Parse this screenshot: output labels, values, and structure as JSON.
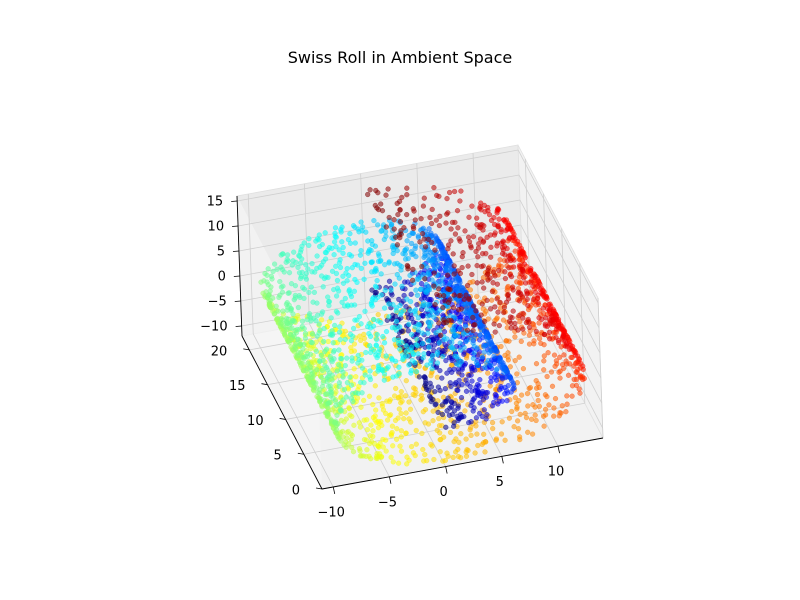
{
  "chart_data": {
    "type": "scatter",
    "title": "Swiss Roll in Ambient Space",
    "xlabel": "",
    "ylabel": "",
    "zlabel": "",
    "xlim": [
      -11,
      14
    ],
    "ylim": [
      0,
      22
    ],
    "zlim": [
      -12,
      16
    ],
    "grid": true,
    "colormap": "jet",
    "n_points": 3000,
    "manifold": {
      "t_range": [
        4.712,
        14.137
      ],
      "height_range": [
        0,
        21
      ],
      "x_formula": "t*cos(t)",
      "y_formula": "height",
      "z_formula": "t*sin(t)",
      "color_value": "t"
    },
    "x_ticks": [
      {
        "value": -10,
        "label": "−10"
      },
      {
        "value": -5,
        "label": "−5"
      },
      {
        "value": 0,
        "label": "0"
      },
      {
        "value": 5,
        "label": "5"
      },
      {
        "value": 10,
        "label": "10"
      }
    ],
    "y_ticks": [
      {
        "value": 0,
        "label": "0"
      },
      {
        "value": 5,
        "label": "5"
      },
      {
        "value": 10,
        "label": "10"
      },
      {
        "value": 15,
        "label": "15"
      },
      {
        "value": 20,
        "label": "20"
      }
    ],
    "z_ticks": [
      {
        "value": -10,
        "label": "−10"
      },
      {
        "value": -5,
        "label": "−5"
      },
      {
        "value": 0,
        "label": "0"
      },
      {
        "value": 5,
        "label": "5"
      },
      {
        "value": 10,
        "label": "10"
      },
      {
        "value": 15,
        "label": "15"
      }
    ]
  }
}
